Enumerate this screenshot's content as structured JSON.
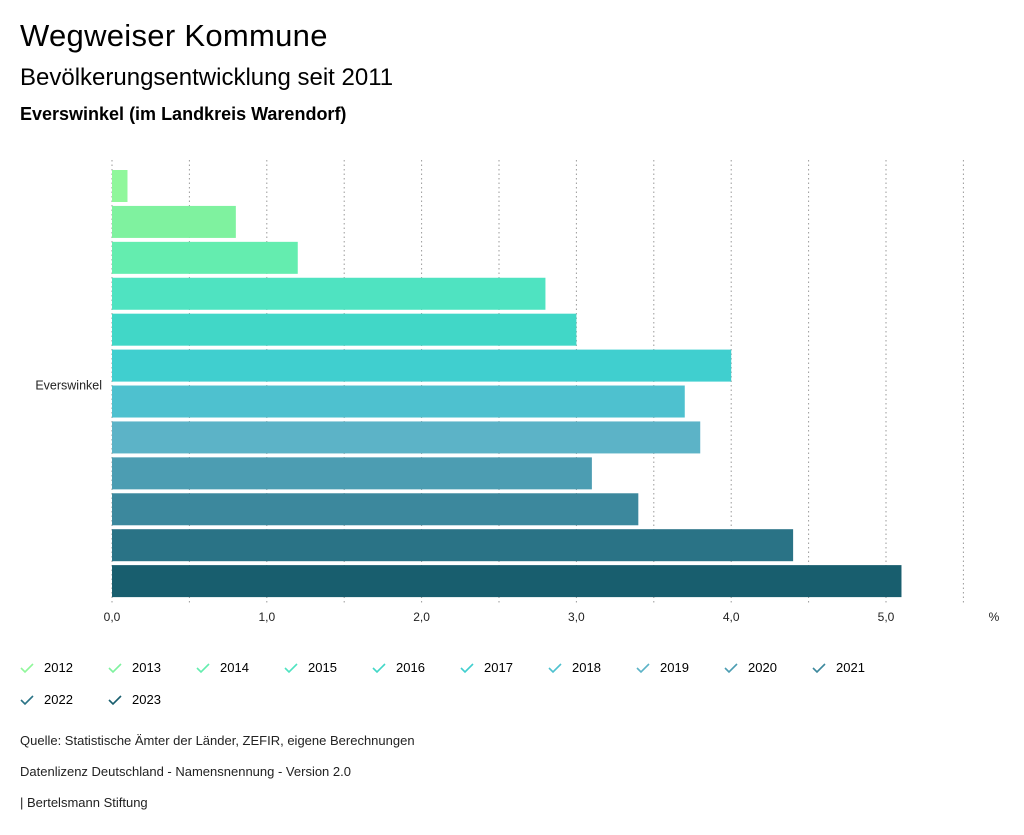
{
  "header": {
    "title": "Wegweiser Kommune",
    "subtitle": "Bevölkerungsentwicklung seit 2011",
    "region": "Everswinkel (im Landkreis Warendorf)"
  },
  "chart_data": {
    "type": "bar",
    "orientation": "horizontal",
    "categories": [
      "Everswinkel"
    ],
    "series": [
      {
        "name": "2012",
        "values": [
          0.1
        ],
        "color": "#90f79b"
      },
      {
        "name": "2013",
        "values": [
          0.8
        ],
        "color": "#7ff29f"
      },
      {
        "name": "2014",
        "values": [
          1.2
        ],
        "color": "#64edaf"
      },
      {
        "name": "2015",
        "values": [
          2.8
        ],
        "color": "#4fe3c1"
      },
      {
        "name": "2016",
        "values": [
          3.0
        ],
        "color": "#41d7c7"
      },
      {
        "name": "2017",
        "values": [
          4.0
        ],
        "color": "#40cfcf"
      },
      {
        "name": "2018",
        "values": [
          3.7
        ],
        "color": "#4ec1cf"
      },
      {
        "name": "2019",
        "values": [
          3.8
        ],
        "color": "#5cb3c7"
      },
      {
        "name": "2020",
        "values": [
          3.1
        ],
        "color": "#4c9db2"
      },
      {
        "name": "2021",
        "values": [
          3.4
        ],
        "color": "#3c889d"
      },
      {
        "name": "2022",
        "values": [
          4.4
        ],
        "color": "#2a7386"
      },
      {
        "name": "2023",
        "values": [
          5.1
        ],
        "color": "#185e6e"
      }
    ],
    "xlim": [
      0,
      5.5
    ],
    "ticks": [
      {
        "value": 0,
        "label": "0,0"
      },
      {
        "value": 1,
        "label": "1,0"
      },
      {
        "value": 2,
        "label": "2,0"
      },
      {
        "value": 3,
        "label": "3,0"
      },
      {
        "value": 4,
        "label": "4,0"
      },
      {
        "value": 5,
        "label": "5,0"
      }
    ],
    "gridlines": [
      0.5,
      1,
      1.5,
      2,
      2.5,
      3,
      3.5,
      4,
      4.5,
      5,
      5.5
    ],
    "unit_label": "%",
    "legend_position": "bottom"
  },
  "footer": {
    "source": "Quelle: Statistische Ämter der Länder, ZEFIR, eigene Berechnungen",
    "license": "Datenlizenz Deutschland - Namensnennung - Version 2.0",
    "publisher": "| Bertelsmann Stiftung"
  }
}
